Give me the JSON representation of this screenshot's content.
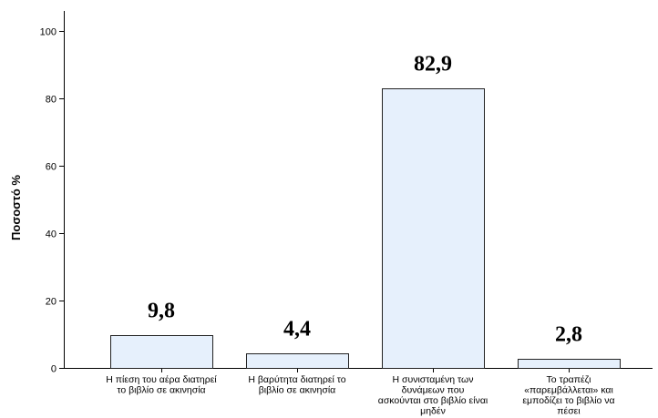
{
  "chart_data": {
    "type": "bar",
    "ylabel": "Ποσοστό %",
    "xlabel": "",
    "ylim": [
      0,
      105
    ],
    "yticks": [
      0,
      20,
      40,
      60,
      80,
      100
    ],
    "ytick_labels": [
      "0",
      "20",
      "40",
      "60",
      "80",
      "100"
    ],
    "grid": false,
    "bar_color": "#e6f0fc",
    "bar_edge_color": "#222222",
    "categories": [
      [
        "Η πίεση του αέρα διατηρεί",
        "το βιβλίο σε ακινησία"
      ],
      [
        "Η βαρύτητα διατηρεί το",
        "βιβλίο σε ακινησία"
      ],
      [
        "Η συνισταμένη των",
        "δυνάμεων  που",
        "ασκούνται στο βιβλίο είναι",
        "μηδέν"
      ],
      [
        "Το τραπέζι",
        "«παρεμβάλλεται» και",
        "εμποδίζει το βιβλίο να",
        "πέσει"
      ]
    ],
    "values": [
      9.8,
      4.4,
      82.9,
      2.8
    ],
    "data_labels": [
      "9,8",
      "4,4",
      "82,9",
      "2,8"
    ]
  }
}
